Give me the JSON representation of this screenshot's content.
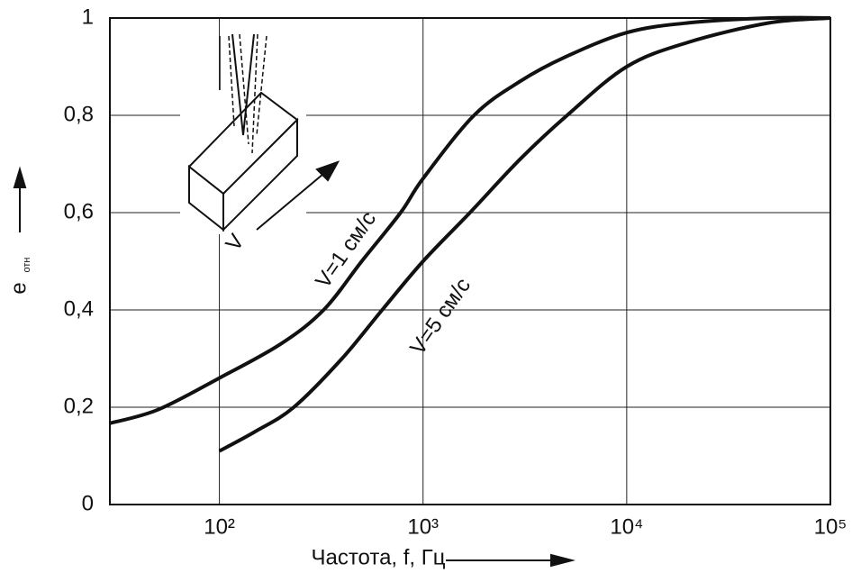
{
  "chart_data": {
    "type": "line",
    "xlabel": "Частота, f, Гц",
    "ylabel": "e",
    "ylabel_subscript": "отн",
    "inset_label": "V",
    "log_x": true,
    "grid": true,
    "xlim": [
      29,
      100000
    ],
    "ylim": [
      0,
      1
    ],
    "xticks": [
      {
        "value": 100,
        "label": "10²"
      },
      {
        "value": 1000,
        "label": "10³"
      },
      {
        "value": 10000,
        "label": "10⁴"
      },
      {
        "value": 100000,
        "label": "10⁵"
      }
    ],
    "yticks": [
      0,
      {
        "value": 0.2,
        "label": "0,2"
      },
      {
        "value": 0.4,
        "label": "0,4"
      },
      {
        "value": 0.6,
        "label": "0,6"
      },
      {
        "value": 0.8,
        "label": "0,8"
      },
      1
    ],
    "series": [
      {
        "name": "V=1 см/с",
        "color": "#111111",
        "x": [
          29,
          50,
          100,
          200,
          325,
          500,
          776,
          1000,
          1780,
          3000,
          5000,
          10000,
          20000,
          50000,
          100000
        ],
        "values": [
          0.167,
          0.195,
          0.26,
          0.33,
          0.4,
          0.5,
          0.6,
          0.67,
          0.8,
          0.87,
          0.92,
          0.97,
          0.99,
          1.0,
          1.0
        ]
      },
      {
        "name": "V=5 см/с",
        "color": "#111111",
        "x": [
          100,
          150,
          232,
          400,
          630,
          1000,
          1700,
          3000,
          5100,
          10000,
          20000,
          50000,
          100000
        ],
        "values": [
          0.11,
          0.15,
          0.2,
          0.3,
          0.4,
          0.5,
          0.6,
          0.71,
          0.8,
          0.9,
          0.95,
          0.99,
          1.0
        ]
      }
    ]
  }
}
